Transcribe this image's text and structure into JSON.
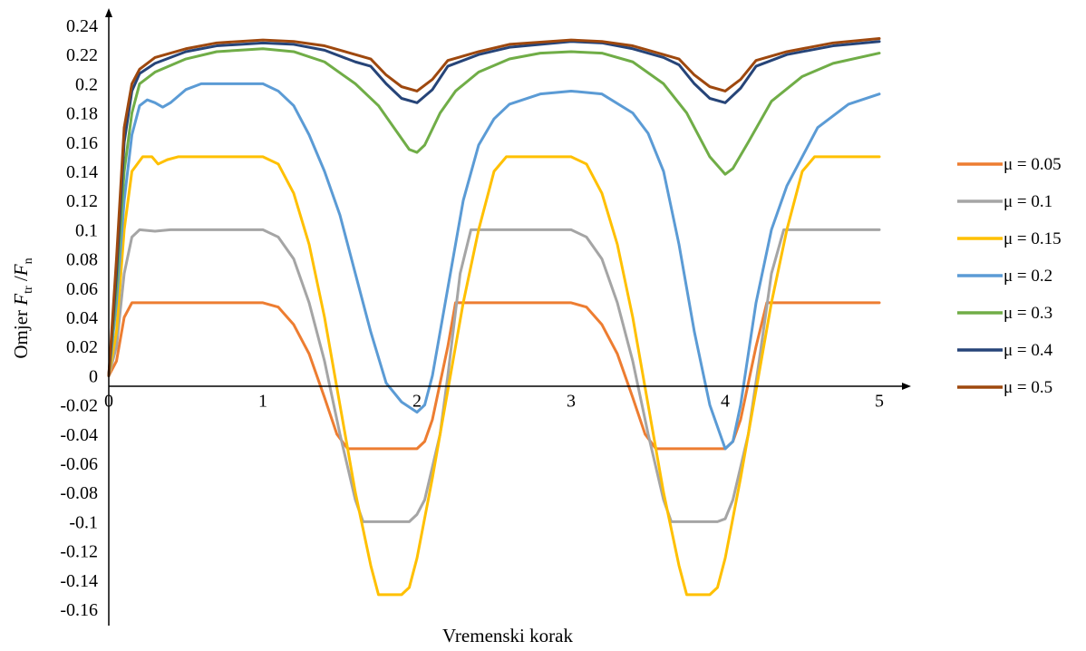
{
  "chart_data": {
    "type": "line",
    "title": "",
    "xlabel": "Vremenski korak",
    "ylabel": {
      "prefix": "Omjer ",
      "num_var": "F",
      "num_sub": "tr",
      "slash": " /",
      "den_var": "F",
      "den_sub": "n"
    },
    "xlim": [
      0,
      5
    ],
    "ylim": [
      -0.16,
      0.24
    ],
    "x_ticks": [
      "0",
      "1",
      "2",
      "3",
      "4",
      "5"
    ],
    "y_ticks": [
      "0.24",
      "0.22",
      "0.2",
      "0.18",
      "0.16",
      "0.14",
      "0.12",
      "0.1",
      "0.08",
      "0.06",
      "0.04",
      "0.02",
      "0",
      "-0.02",
      "-0.04",
      "-0.06",
      "-0.08",
      "-0.1",
      "-0.12",
      "-0.14",
      "-0.16"
    ],
    "grid": false,
    "legend_position": "right",
    "series": [
      {
        "name": "μ = 0.05",
        "color": "#ED7D31",
        "points": [
          [
            0,
            0
          ],
          [
            0.05,
            0.01
          ],
          [
            0.1,
            0.04
          ],
          [
            0.15,
            0.05
          ],
          [
            0.2,
            0.05
          ],
          [
            1,
            0.05
          ],
          [
            1.1,
            0.047
          ],
          [
            1.2,
            0.035
          ],
          [
            1.3,
            0.015
          ],
          [
            1.4,
            -0.015
          ],
          [
            1.48,
            -0.04
          ],
          [
            1.55,
            -0.05
          ],
          [
            1.6,
            -0.05
          ],
          [
            1.9,
            -0.05
          ],
          [
            1.95,
            -0.05
          ],
          [
            2.0,
            -0.05
          ],
          [
            2.05,
            -0.045
          ],
          [
            2.1,
            -0.03
          ],
          [
            2.2,
            0.02
          ],
          [
            2.25,
            0.05
          ],
          [
            2.3,
            0.05
          ],
          [
            3,
            0.05
          ],
          [
            3.1,
            0.047
          ],
          [
            3.2,
            0.035
          ],
          [
            3.3,
            0.015
          ],
          [
            3.4,
            -0.015
          ],
          [
            3.48,
            -0.04
          ],
          [
            3.55,
            -0.05
          ],
          [
            3.6,
            -0.05
          ],
          [
            3.95,
            -0.05
          ],
          [
            4.0,
            -0.05
          ],
          [
            4.05,
            -0.045
          ],
          [
            4.1,
            -0.03
          ],
          [
            4.2,
            0.02
          ],
          [
            4.27,
            0.05
          ],
          [
            4.3,
            0.05
          ],
          [
            5,
            0.05
          ]
        ]
      },
      {
        "name": "μ = 0.1",
        "color": "#A5A5A5",
        "points": [
          [
            0,
            0
          ],
          [
            0.05,
            0.02
          ],
          [
            0.1,
            0.07
          ],
          [
            0.15,
            0.095
          ],
          [
            0.2,
            0.1
          ],
          [
            0.3,
            0.099
          ],
          [
            0.4,
            0.1
          ],
          [
            1,
            0.1
          ],
          [
            1.1,
            0.095
          ],
          [
            1.2,
            0.08
          ],
          [
            1.3,
            0.05
          ],
          [
            1.4,
            0.01
          ],
          [
            1.5,
            -0.04
          ],
          [
            1.6,
            -0.085
          ],
          [
            1.65,
            -0.1
          ],
          [
            1.9,
            -0.1
          ],
          [
            1.95,
            -0.1
          ],
          [
            2.0,
            -0.095
          ],
          [
            2.05,
            -0.085
          ],
          [
            2.15,
            -0.04
          ],
          [
            2.2,
            0.0
          ],
          [
            2.28,
            0.07
          ],
          [
            2.35,
            0.1
          ],
          [
            3,
            0.1
          ],
          [
            3.1,
            0.095
          ],
          [
            3.2,
            0.08
          ],
          [
            3.3,
            0.05
          ],
          [
            3.4,
            0.01
          ],
          [
            3.5,
            -0.04
          ],
          [
            3.6,
            -0.085
          ],
          [
            3.65,
            -0.1
          ],
          [
            3.95,
            -0.1
          ],
          [
            4.0,
            -0.098
          ],
          [
            4.05,
            -0.085
          ],
          [
            4.15,
            -0.04
          ],
          [
            4.22,
            0.01
          ],
          [
            4.3,
            0.07
          ],
          [
            4.38,
            0.1
          ],
          [
            5,
            0.1
          ]
        ]
      },
      {
        "name": "μ = 0.15",
        "color": "#FFC000",
        "points": [
          [
            0,
            0
          ],
          [
            0.05,
            0.03
          ],
          [
            0.1,
            0.1
          ],
          [
            0.15,
            0.14
          ],
          [
            0.22,
            0.15
          ],
          [
            0.28,
            0.15
          ],
          [
            0.32,
            0.145
          ],
          [
            0.38,
            0.148
          ],
          [
            0.45,
            0.15
          ],
          [
            1,
            0.15
          ],
          [
            1.1,
            0.145
          ],
          [
            1.2,
            0.125
          ],
          [
            1.3,
            0.09
          ],
          [
            1.4,
            0.04
          ],
          [
            1.5,
            -0.02
          ],
          [
            1.6,
            -0.08
          ],
          [
            1.7,
            -0.13
          ],
          [
            1.75,
            -0.15
          ],
          [
            1.9,
            -0.15
          ],
          [
            1.95,
            -0.145
          ],
          [
            2.0,
            -0.125
          ],
          [
            2.1,
            -0.07
          ],
          [
            2.2,
            -0.01
          ],
          [
            2.3,
            0.05
          ],
          [
            2.4,
            0.1
          ],
          [
            2.5,
            0.14
          ],
          [
            2.58,
            0.15
          ],
          [
            3,
            0.15
          ],
          [
            3.1,
            0.145
          ],
          [
            3.2,
            0.125
          ],
          [
            3.3,
            0.09
          ],
          [
            3.4,
            0.04
          ],
          [
            3.5,
            -0.02
          ],
          [
            3.6,
            -0.08
          ],
          [
            3.7,
            -0.13
          ],
          [
            3.75,
            -0.15
          ],
          [
            3.9,
            -0.15
          ],
          [
            3.95,
            -0.145
          ],
          [
            4.0,
            -0.125
          ],
          [
            4.1,
            -0.07
          ],
          [
            4.2,
            -0.01
          ],
          [
            4.3,
            0.05
          ],
          [
            4.4,
            0.1
          ],
          [
            4.5,
            0.14
          ],
          [
            4.58,
            0.15
          ],
          [
            5,
            0.15
          ]
        ]
      },
      {
        "name": "μ = 0.2",
        "color": "#5B9BD5",
        "points": [
          [
            0,
            0
          ],
          [
            0.05,
            0.05
          ],
          [
            0.1,
            0.12
          ],
          [
            0.15,
            0.165
          ],
          [
            0.2,
            0.185
          ],
          [
            0.25,
            0.189
          ],
          [
            0.3,
            0.187
          ],
          [
            0.35,
            0.184
          ],
          [
            0.4,
            0.187
          ],
          [
            0.5,
            0.196
          ],
          [
            0.6,
            0.2
          ],
          [
            1,
            0.2
          ],
          [
            1.1,
            0.195
          ],
          [
            1.2,
            0.185
          ],
          [
            1.3,
            0.165
          ],
          [
            1.4,
            0.14
          ],
          [
            1.5,
            0.11
          ],
          [
            1.6,
            0.07
          ],
          [
            1.7,
            0.03
          ],
          [
            1.8,
            -0.005
          ],
          [
            1.9,
            -0.018
          ],
          [
            2.0,
            -0.025
          ],
          [
            2.05,
            -0.02
          ],
          [
            2.1,
            0.0
          ],
          [
            2.2,
            0.06
          ],
          [
            2.3,
            0.12
          ],
          [
            2.4,
            0.158
          ],
          [
            2.5,
            0.176
          ],
          [
            2.6,
            0.186
          ],
          [
            2.8,
            0.193
          ],
          [
            3,
            0.195
          ],
          [
            3.2,
            0.193
          ],
          [
            3.4,
            0.18
          ],
          [
            3.5,
            0.166
          ],
          [
            3.6,
            0.14
          ],
          [
            3.7,
            0.09
          ],
          [
            3.8,
            0.03
          ],
          [
            3.9,
            -0.02
          ],
          [
            4.0,
            -0.05
          ],
          [
            4.05,
            -0.045
          ],
          [
            4.1,
            -0.02
          ],
          [
            4.2,
            0.05
          ],
          [
            4.3,
            0.1
          ],
          [
            4.4,
            0.13
          ],
          [
            4.6,
            0.17
          ],
          [
            4.8,
            0.186
          ],
          [
            5,
            0.193
          ]
        ]
      },
      {
        "name": "μ = 0.3",
        "color": "#70AD47",
        "points": [
          [
            0,
            0
          ],
          [
            0.05,
            0.06
          ],
          [
            0.1,
            0.14
          ],
          [
            0.15,
            0.18
          ],
          [
            0.2,
            0.2
          ],
          [
            0.3,
            0.208
          ],
          [
            0.5,
            0.217
          ],
          [
            0.7,
            0.222
          ],
          [
            1,
            0.224
          ],
          [
            1.2,
            0.222
          ],
          [
            1.4,
            0.215
          ],
          [
            1.6,
            0.2
          ],
          [
            1.75,
            0.185
          ],
          [
            1.85,
            0.17
          ],
          [
            1.95,
            0.155
          ],
          [
            2.0,
            0.153
          ],
          [
            2.05,
            0.158
          ],
          [
            2.15,
            0.18
          ],
          [
            2.25,
            0.195
          ],
          [
            2.4,
            0.208
          ],
          [
            2.6,
            0.217
          ],
          [
            2.8,
            0.221
          ],
          [
            3,
            0.222
          ],
          [
            3.2,
            0.221
          ],
          [
            3.4,
            0.215
          ],
          [
            3.6,
            0.2
          ],
          [
            3.75,
            0.18
          ],
          [
            3.9,
            0.15
          ],
          [
            4.0,
            0.138
          ],
          [
            4.05,
            0.142
          ],
          [
            4.15,
            0.16
          ],
          [
            4.3,
            0.188
          ],
          [
            4.5,
            0.205
          ],
          [
            4.7,
            0.214
          ],
          [
            5,
            0.221
          ]
        ]
      },
      {
        "name": "μ = 0.4",
        "color": "#264478",
        "points": [
          [
            0,
            0
          ],
          [
            0.05,
            0.07
          ],
          [
            0.1,
            0.16
          ],
          [
            0.15,
            0.195
          ],
          [
            0.2,
            0.207
          ],
          [
            0.3,
            0.214
          ],
          [
            0.5,
            0.222
          ],
          [
            0.7,
            0.226
          ],
          [
            1,
            0.228
          ],
          [
            1.2,
            0.227
          ],
          [
            1.4,
            0.223
          ],
          [
            1.6,
            0.215
          ],
          [
            1.7,
            0.212
          ],
          [
            1.8,
            0.2
          ],
          [
            1.9,
            0.19
          ],
          [
            2.0,
            0.187
          ],
          [
            2.1,
            0.196
          ],
          [
            2.2,
            0.212
          ],
          [
            2.4,
            0.22
          ],
          [
            2.6,
            0.225
          ],
          [
            3,
            0.229
          ],
          [
            3.2,
            0.228
          ],
          [
            3.4,
            0.224
          ],
          [
            3.6,
            0.218
          ],
          [
            3.7,
            0.213
          ],
          [
            3.8,
            0.2
          ],
          [
            3.9,
            0.19
          ],
          [
            4.0,
            0.187
          ],
          [
            4.1,
            0.197
          ],
          [
            4.2,
            0.212
          ],
          [
            4.4,
            0.22
          ],
          [
            4.7,
            0.226
          ],
          [
            5,
            0.229
          ]
        ]
      },
      {
        "name": "μ = 0.5",
        "color": "#9E480E",
        "points": [
          [
            0,
            0
          ],
          [
            0.05,
            0.08
          ],
          [
            0.1,
            0.17
          ],
          [
            0.15,
            0.2
          ],
          [
            0.2,
            0.21
          ],
          [
            0.3,
            0.218
          ],
          [
            0.5,
            0.224
          ],
          [
            0.7,
            0.228
          ],
          [
            1,
            0.23
          ],
          [
            1.2,
            0.229
          ],
          [
            1.4,
            0.226
          ],
          [
            1.6,
            0.22
          ],
          [
            1.7,
            0.217
          ],
          [
            1.8,
            0.206
          ],
          [
            1.9,
            0.198
          ],
          [
            2.0,
            0.195
          ],
          [
            2.1,
            0.203
          ],
          [
            2.2,
            0.216
          ],
          [
            2.4,
            0.222
          ],
          [
            2.6,
            0.227
          ],
          [
            3,
            0.23
          ],
          [
            3.2,
            0.229
          ],
          [
            3.4,
            0.226
          ],
          [
            3.6,
            0.22
          ],
          [
            3.7,
            0.217
          ],
          [
            3.8,
            0.206
          ],
          [
            3.9,
            0.198
          ],
          [
            4.0,
            0.195
          ],
          [
            4.1,
            0.203
          ],
          [
            4.2,
            0.216
          ],
          [
            4.4,
            0.222
          ],
          [
            4.7,
            0.228
          ],
          [
            5,
            0.231
          ]
        ]
      }
    ]
  }
}
